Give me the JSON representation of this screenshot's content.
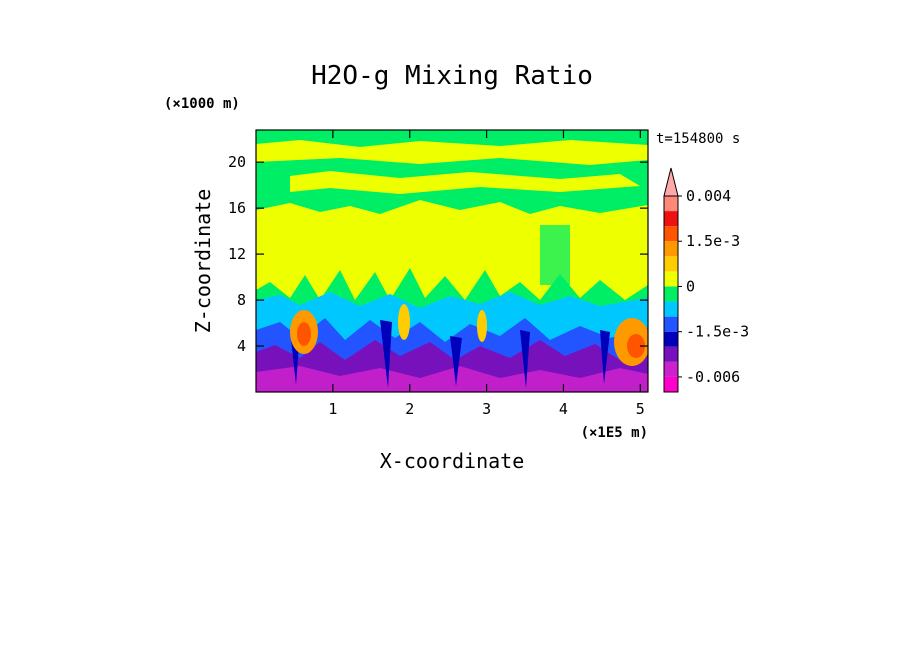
{
  "chart_data": {
    "type": "heatmap",
    "title": "H2O-g Mixing Ratio",
    "xlabel": "X-coordinate",
    "ylabel": "Z-coordinate",
    "x_units": "(×1E5 m)",
    "y_units": "(×1000 m)",
    "time_label": "t=154800 s",
    "xlim": [
      0,
      5.1
    ],
    "ylim": [
      0,
      22.8
    ],
    "x_ticks": [
      1,
      2,
      3,
      4,
      5
    ],
    "x_tick_labels": [
      "1",
      "2",
      "3",
      "4",
      "5"
    ],
    "y_ticks": [
      4,
      8,
      12,
      16,
      20
    ],
    "y_tick_labels": [
      "4",
      "8",
      "12",
      "16",
      "20"
    ],
    "colorbar": {
      "levels": [
        -0.008,
        -0.006,
        -0.004,
        -0.0025,
        -0.0015,
        -0.001,
        -0.0005,
        0,
        0.0005,
        0.001,
        0.0015,
        0.002,
        0.003,
        0.004
      ],
      "colors": [
        "#ff00cc",
        "#cc22cc",
        "#7711bb",
        "#0000bb",
        "#2255ff",
        "#00c8ff",
        "#00ee66",
        "#eeff00",
        "#ffcc00",
        "#ff9900",
        "#ff5500",
        "#ee1111",
        "#ff8877",
        "#ffaaaa"
      ],
      "tick_labels": [
        "0.004",
        "1.5e-3",
        "0",
        "-1.5e-3",
        "-0.006"
      ],
      "tick_values": [
        0.004,
        0.0015,
        0,
        -0.0015,
        -0.006
      ],
      "extend": "max"
    },
    "layers": [
      {
        "z_range": [
          0,
          3
        ],
        "dominant": "violet/purple (~ -0.005)"
      },
      {
        "z_range": [
          3,
          8
        ],
        "dominant": "blue/cyan with orange plumes (~0.0015) near x=0.6 and x=5.0"
      },
      {
        "z_range": [
          8,
          16
        ],
        "dominant": "yellow (~0.0003)"
      },
      {
        "z_range": [
          16,
          22.8
        ],
        "dominant": "green/yellow bands (~0)"
      }
    ]
  }
}
